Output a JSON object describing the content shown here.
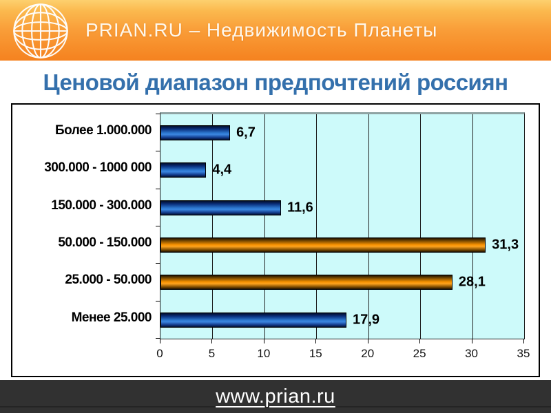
{
  "header": {
    "brand": "PRIAN.RU – Недвижимость Планеты",
    "logo_icon": "globe-icon",
    "bg_top_color": "#fdd06e",
    "bg_bottom_color": "#f5821f",
    "text_color": "#fef7ec"
  },
  "title": {
    "text": "Ценовой диапазон предпочтений россиян",
    "color": "#3470ac"
  },
  "chart_data": {
    "type": "bar",
    "orientation": "horizontal",
    "categories": [
      "Более 1.000.000",
      "300.000 - 1000 000",
      "150.000 - 300.000",
      "50.000 - 150.000",
      "25.000 - 50.000",
      "Менее 25.000"
    ],
    "values": [
      6.7,
      4.4,
      11.6,
      31.3,
      28.1,
      17.9
    ],
    "value_labels": [
      "6,7",
      "4,4",
      "11,6",
      "31,3",
      "28,1",
      "17,9"
    ],
    "bar_colors": [
      "blue",
      "blue",
      "blue",
      "orange",
      "orange",
      "blue"
    ],
    "xlim": [
      0,
      35
    ],
    "x_ticks": [
      0,
      5,
      10,
      15,
      20,
      25,
      30,
      35
    ],
    "grid": true,
    "legend": false,
    "plot_bg": "#cdfafa",
    "colors": {
      "blue": "#2e7ad2",
      "orange": "#f79200"
    },
    "title": "",
    "xlabel": "",
    "ylabel": ""
  },
  "footer": {
    "link": "www.prian.ru",
    "bg_color": "#313131",
    "text_color": "#ffffff"
  }
}
